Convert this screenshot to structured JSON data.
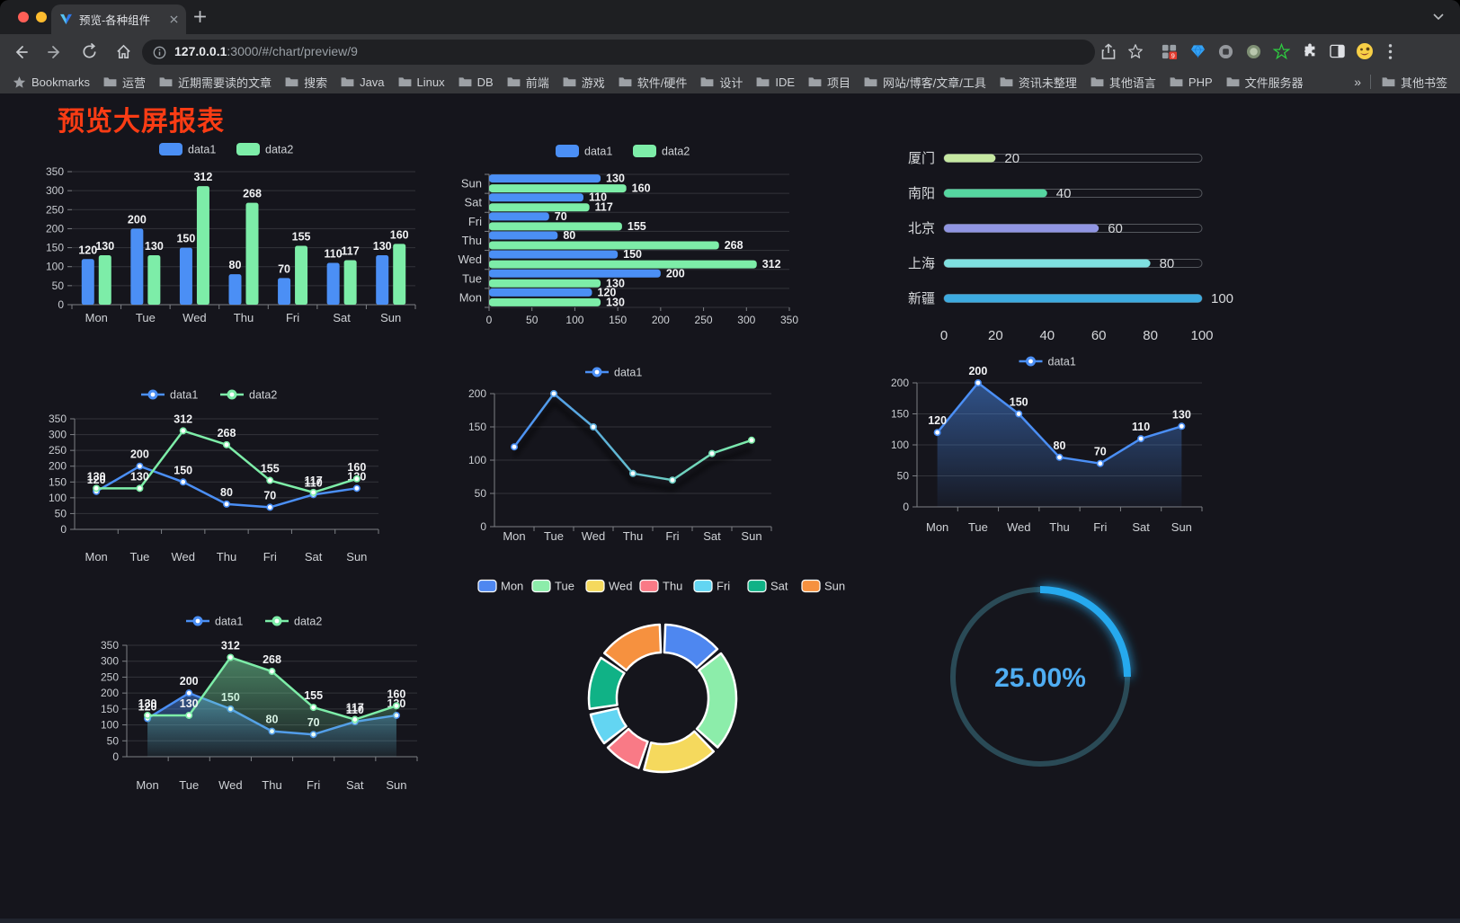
{
  "browser": {
    "traffic_lights": {
      "close": "#ff5f57",
      "minimize": "#febc2e",
      "zoom": "#29c73f"
    },
    "tab": {
      "title": "预览-各种组件",
      "favicon": "blue-v-logo",
      "close": "×"
    },
    "new_tab": "+",
    "url": {
      "host": "127.0.0.1",
      "rest": ":3000/#/chart/preview/9"
    },
    "toolbar_icons": [
      "back-arrow",
      "forward-arrow",
      "reload",
      "home",
      "info"
    ],
    "action_icons": [
      "share",
      "star"
    ],
    "extension_icons": [
      "grid-badge",
      "blue-gem",
      "grey-circle",
      "green-circle",
      "green-star",
      "puzzle",
      "panel",
      "emoji"
    ],
    "extension_badge": "9",
    "menu_icon": "kebab-menu",
    "bookmarks_label": "Bookmarks",
    "bookmarks": [
      "运营",
      "近期需要读的文章",
      "搜索",
      "Java",
      "Linux",
      "DB",
      "前端",
      "游戏",
      "软件/硬件",
      "设计",
      "IDE",
      "项目",
      "网站/博客/文章/工具",
      "资讯未整理",
      "其他语言",
      "PHP",
      "文件服务器"
    ],
    "bookmarks_overflow": "»",
    "other_bookmarks": "其他书签"
  },
  "page": {
    "title": "预览大屏报表",
    "title_color": "#fa3c14",
    "background": "#15151c"
  },
  "chart_data": [
    {
      "type": "bar",
      "categories": [
        "Mon",
        "Tue",
        "Wed",
        "Thu",
        "Fri",
        "Sat",
        "Sun"
      ],
      "series": [
        {
          "name": "data1",
          "color": "#4b8ff5",
          "values": [
            120,
            200,
            150,
            80,
            70,
            110,
            130
          ]
        },
        {
          "name": "data2",
          "color": "#7deda8",
          "values": [
            130,
            130,
            312,
            268,
            155,
            117,
            160
          ]
        }
      ],
      "ylim": [
        0,
        350
      ],
      "yticks": [
        0,
        50,
        100,
        150,
        200,
        250,
        300,
        350
      ],
      "grid": true,
      "legend_position": "top",
      "show_labels": true
    },
    {
      "type": "bar-horizontal",
      "categories": [
        "Mon",
        "Tue",
        "Wed",
        "Thu",
        "Fri",
        "Sat",
        "Sun"
      ],
      "display_order": "Sun-at-top",
      "series": [
        {
          "name": "data1",
          "color": "#4b8ff5",
          "values": [
            120,
            200,
            150,
            80,
            70,
            110,
            130
          ]
        },
        {
          "name": "data2",
          "color": "#7deda8",
          "values": [
            130,
            130,
            312,
            268,
            155,
            117,
            160
          ]
        }
      ],
      "xlim": [
        0,
        350
      ],
      "xticks": [
        0,
        50,
        100,
        150,
        200,
        250,
        300,
        350
      ],
      "grid": true,
      "legend_position": "top",
      "show_labels": true
    },
    {
      "type": "progress-bars",
      "max": 100,
      "xticks": [
        0,
        20,
        40,
        60,
        80,
        100
      ],
      "rows": [
        {
          "label": "厦门",
          "value": 20,
          "color": "#c6e8a2"
        },
        {
          "label": "南阳",
          "value": 40,
          "color": "#55d6a0"
        },
        {
          "label": "北京",
          "value": 60,
          "color": "#9095e2"
        },
        {
          "label": "上海",
          "value": 80,
          "color": "#7fe0e0"
        },
        {
          "label": "新疆",
          "value": 100,
          "color": "#3dabe0"
        }
      ]
    },
    {
      "type": "line",
      "categories": [
        "Mon",
        "Tue",
        "Wed",
        "Thu",
        "Fri",
        "Sat",
        "Sun"
      ],
      "series": [
        {
          "name": "data1",
          "color": "#4b8ff5",
          "values": [
            120,
            200,
            150,
            80,
            70,
            110,
            130
          ]
        },
        {
          "name": "data2",
          "color": "#7deda8",
          "values": [
            130,
            130,
            312,
            268,
            155,
            117,
            160
          ]
        }
      ],
      "ylim": [
        0,
        350
      ],
      "yticks": [
        0,
        50,
        100,
        150,
        200,
        250,
        300,
        350
      ],
      "grid": true,
      "legend_position": "top",
      "show_labels": true
    },
    {
      "type": "line",
      "categories": [
        "Mon",
        "Tue",
        "Wed",
        "Thu",
        "Fri",
        "Sat",
        "Sun"
      ],
      "series": [
        {
          "name": "data1",
          "gradient": [
            "#4b8ff5",
            "#7deda8"
          ],
          "color": "#4b8ff5",
          "values": [
            120,
            200,
            150,
            80,
            70,
            110,
            130
          ]
        }
      ],
      "ylim": [
        0,
        200
      ],
      "yticks": [
        0,
        50,
        100,
        150,
        200
      ],
      "grid": true,
      "legend_position": "top",
      "show_labels": false,
      "shadow": true
    },
    {
      "type": "area",
      "categories": [
        "Mon",
        "Tue",
        "Wed",
        "Thu",
        "Fri",
        "Sat",
        "Sun"
      ],
      "series": [
        {
          "name": "data1",
          "color": "#4b8ff5",
          "values": [
            120,
            200,
            150,
            80,
            70,
            110,
            130
          ]
        }
      ],
      "ylim": [
        0,
        200
      ],
      "yticks": [
        0,
        50,
        100,
        150,
        200
      ],
      "grid": true,
      "legend_position": "top",
      "show_labels": true
    },
    {
      "type": "area",
      "categories": [
        "Mon",
        "Tue",
        "Wed",
        "Thu",
        "Fri",
        "Sat",
        "Sun"
      ],
      "series": [
        {
          "name": "data1",
          "color": "#4b8ff5",
          "values": [
            120,
            200,
            150,
            80,
            70,
            110,
            130
          ]
        },
        {
          "name": "data2",
          "color": "#7deda8",
          "values": [
            130,
            130,
            312,
            268,
            155,
            117,
            160
          ]
        }
      ],
      "ylim": [
        0,
        350
      ],
      "yticks": [
        0,
        50,
        100,
        150,
        200,
        250,
        300,
        350
      ],
      "grid": true,
      "legend_position": "top",
      "show_labels": true
    },
    {
      "type": "pie",
      "subtype": "donut-rounded",
      "categories": [
        "Mon",
        "Tue",
        "Wed",
        "Thu",
        "Fri",
        "Sat",
        "Sun"
      ],
      "values": [
        120,
        200,
        150,
        80,
        70,
        110,
        130
      ],
      "colors": [
        "#4e87f0",
        "#8cedaa",
        "#f5d95d",
        "#f97a86",
        "#63d5f2",
        "#10b286",
        "#f6913f"
      ],
      "legend_position": "top"
    },
    {
      "type": "gauge",
      "value": 25,
      "label": "25.00%",
      "color": "#27a9ee",
      "track_color": "#2a4a56",
      "text_color": "#4fadf2"
    }
  ]
}
